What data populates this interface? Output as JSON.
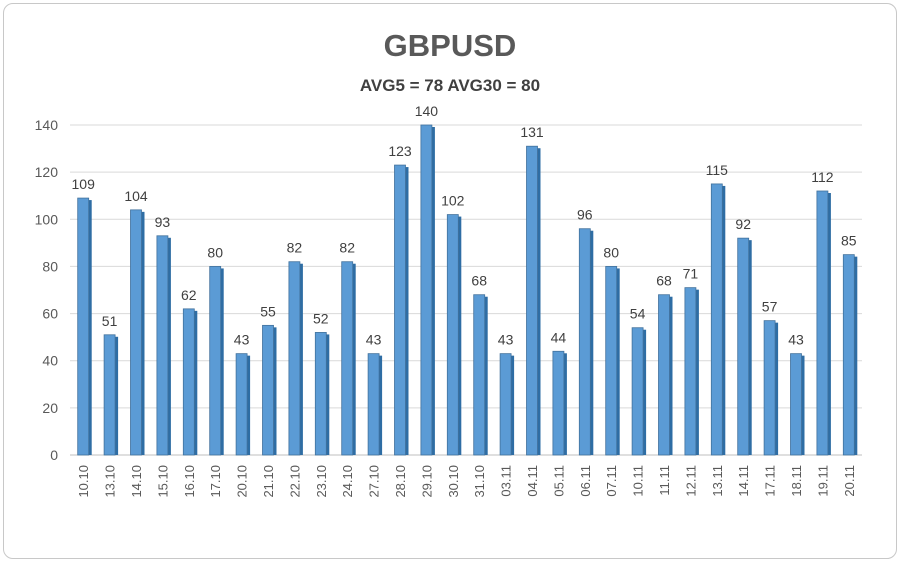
{
  "chart_data": {
    "type": "bar",
    "title": "GBPUSD",
    "subtitle": "AVG5 = 78 AVG30 = 80",
    "xlabel": "",
    "ylabel": "",
    "ylim": [
      0,
      140
    ],
    "yticks": [
      0,
      20,
      40,
      60,
      80,
      100,
      120,
      140
    ],
    "grid": true,
    "legend": "none",
    "bar_color": "#5b9bd5",
    "categories": [
      "10.10",
      "13.10",
      "14.10",
      "15.10",
      "16.10",
      "17.10",
      "20.10",
      "21.10",
      "22.10",
      "23.10",
      "24.10",
      "27.10",
      "28.10",
      "29.10",
      "30.10",
      "31.10",
      "03.11",
      "04.11",
      "05.11",
      "06.11",
      "07.11",
      "10.11",
      "11.11",
      "12.11",
      "13.11",
      "14.11",
      "17.11",
      "18.11",
      "19.11",
      "20.11"
    ],
    "values": [
      109,
      51,
      104,
      93,
      62,
      80,
      43,
      55,
      82,
      52,
      82,
      43,
      123,
      140,
      102,
      68,
      43,
      131,
      44,
      96,
      80,
      54,
      68,
      71,
      115,
      92,
      57,
      43,
      112,
      85
    ]
  }
}
